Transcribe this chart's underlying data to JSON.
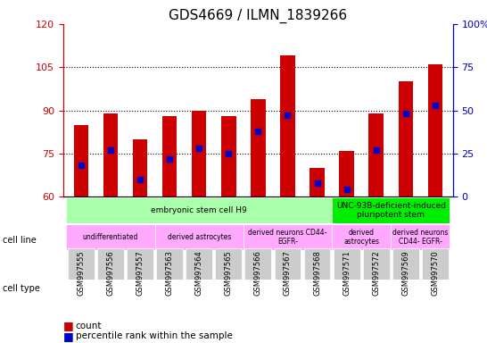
{
  "title": "GDS4669 / ILMN_1839266",
  "samples": [
    "GSM997555",
    "GSM997556",
    "GSM997557",
    "GSM997563",
    "GSM997564",
    "GSM997565",
    "GSM997566",
    "GSM997567",
    "GSM997568",
    "GSM997571",
    "GSM997572",
    "GSM997569",
    "GSM997570"
  ],
  "count_values": [
    85,
    89,
    80,
    88,
    90,
    88,
    94,
    109,
    70,
    76,
    89,
    100,
    106
  ],
  "percentile_values": [
    18,
    27,
    10,
    22,
    28,
    25,
    38,
    47,
    8,
    4,
    27,
    48,
    53
  ],
  "ylim_left": [
    60,
    120
  ],
  "ylim_right": [
    0,
    100
  ],
  "yticks_left": [
    60,
    75,
    90,
    105,
    120
  ],
  "yticks_right": [
    0,
    25,
    50,
    75,
    100
  ],
  "bar_color": "#cc0000",
  "dot_color": "#0000cc",
  "bar_bottom": 60,
  "hgrid_values": [
    75,
    90,
    105
  ],
  "cell_line_groups": [
    {
      "label": "embryonic stem cell H9",
      "start": 0,
      "end": 9,
      "color": "#aaffaa"
    },
    {
      "label": "UNC-93B-deficient-induced\npluripotent stem",
      "start": 9,
      "end": 13,
      "color": "#00ee00"
    }
  ],
  "cell_type_groups": [
    {
      "label": "undifferentiated",
      "start": 0,
      "end": 3,
      "color": "#ffaaff"
    },
    {
      "label": "derived astrocytes",
      "start": 3,
      "end": 6,
      "color": "#ffaaff"
    },
    {
      "label": "derived neurons CD44-\nEGFR-",
      "start": 6,
      "end": 9,
      "color": "#ffaaff"
    },
    {
      "label": "derived\nastrocytes",
      "start": 9,
      "end": 11,
      "color": "#ffaaff"
    },
    {
      "label": "derived neurons\nCD44- EGFR-",
      "start": 11,
      "end": 13,
      "color": "#ffaaff"
    }
  ],
  "left_axis_color": "#cc0000",
  "right_axis_color": "#0000cc",
  "bg_color": "#ffffff"
}
